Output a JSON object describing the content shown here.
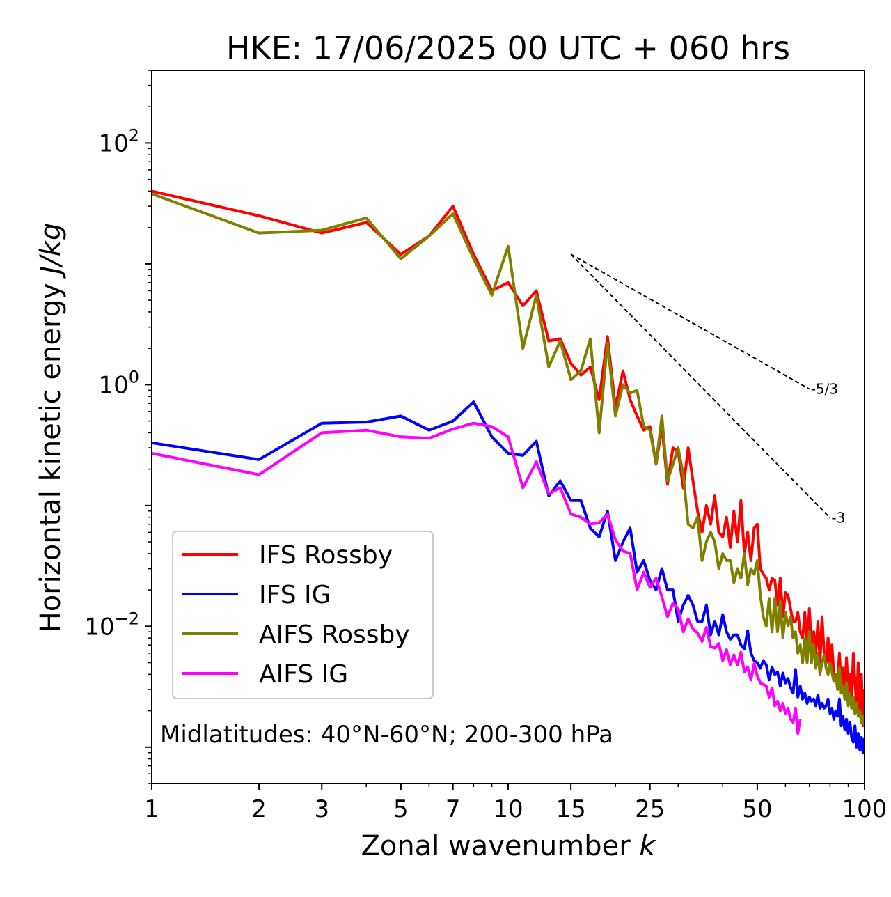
{
  "chart_data": {
    "type": "line",
    "title": "HKE: 17/06/2025 00 UTC + 060 hrs",
    "xlabel": "Zonal wavenumber",
    "xlabel_var": "k",
    "ylabel": "Horizontal kinetic energy",
    "ylabel_unit": "J/kg",
    "xscale": "log",
    "yscale": "log",
    "xlim": [
      1,
      100
    ],
    "ylim": [
      0.0005,
      400
    ],
    "x_ticks": [
      {
        "value": 1,
        "label": "1"
      },
      {
        "value": 2,
        "label": "2"
      },
      {
        "value": 3,
        "label": "3"
      },
      {
        "value": 5,
        "label": "5"
      },
      {
        "value": 7,
        "label": "7"
      },
      {
        "value": 10,
        "label": "10"
      },
      {
        "value": 15,
        "label": "15"
      },
      {
        "value": 25,
        "label": "25"
      },
      {
        "value": 50,
        "label": "50"
      },
      {
        "value": 100,
        "label": "100"
      }
    ],
    "y_ticks": [
      {
        "value": 0.01,
        "base": "10",
        "exp": "−2"
      },
      {
        "value": 1,
        "base": "10",
        "exp": "0"
      },
      {
        "value": 100,
        "base": "10",
        "exp": "2"
      }
    ],
    "legend_position": "lower-left",
    "annotation": "Midlatitudes: 40°N-60°N; 200-300 hPa",
    "reference_lines": [
      {
        "label": "-5/3",
        "slope": -1.6667,
        "x": [
          15,
          70
        ],
        "y_start": 12
      },
      {
        "label": "-3",
        "slope": -3,
        "x": [
          15,
          80
        ],
        "y_start": 12
      }
    ],
    "series": [
      {
        "name": "IFS Rossby",
        "color": "#ff0000",
        "x": [
          1,
          2,
          3,
          4,
          5,
          6,
          7,
          8,
          9,
          10,
          11,
          12,
          13,
          14,
          15,
          16,
          17,
          18,
          19,
          20,
          21,
          22,
          23,
          24,
          25,
          26,
          27,
          28,
          29,
          30,
          31,
          32,
          33,
          34,
          35,
          36,
          37,
          38,
          39,
          40,
          41,
          42,
          43,
          44,
          45,
          46,
          47,
          48,
          49,
          50,
          51,
          52,
          53,
          54,
          55,
          56,
          57,
          58,
          59,
          60,
          61,
          62,
          63,
          64,
          65,
          66,
          67,
          68,
          69,
          70,
          71,
          72,
          73,
          74,
          75,
          76,
          77,
          78,
          79,
          80,
          81,
          82,
          83,
          84,
          85,
          86,
          87,
          88,
          89,
          90,
          91,
          92,
          93,
          94,
          95,
          96,
          97,
          98,
          99,
          100
        ],
        "y": [
          40,
          25,
          18,
          22,
          12,
          17,
          30,
          12,
          6,
          7,
          4.5,
          6,
          2.3,
          2.4,
          1.5,
          1.2,
          1.4,
          0.75,
          2.5,
          0.65,
          1.3,
          0.75,
          0.55,
          0.42,
          0.45,
          0.22,
          0.45,
          0.15,
          0.3,
          0.28,
          0.14,
          0.3,
          0.16,
          0.09,
          0.06,
          0.1,
          0.07,
          0.12,
          0.06,
          0.055,
          0.08,
          0.045,
          0.09,
          0.05,
          0.11,
          0.04,
          0.06,
          0.035,
          0.065,
          0.07,
          0.03,
          0.027,
          0.025,
          0.02,
          0.025,
          0.024,
          0.015,
          0.025,
          0.012,
          0.019,
          0.018,
          0.014,
          0.011,
          0.011,
          0.013,
          0.009,
          0.008,
          0.013,
          0.006,
          0.014,
          0.007,
          0.009,
          0.006,
          0.011,
          0.005,
          0.012,
          0.006,
          0.005,
          0.008,
          0.0045,
          0.007,
          0.004,
          0.0037,
          0.0035,
          0.006,
          0.0032,
          0.0045,
          0.003,
          0.0055,
          0.0028,
          0.004,
          0.0025,
          0.006,
          0.0035,
          0.0022,
          0.005,
          0.0018,
          0.004,
          0.0015,
          0.003
        ]
      },
      {
        "name": "IFS IG",
        "color": "#0000ff",
        "x": [
          1,
          2,
          3,
          4,
          5,
          6,
          7,
          8,
          9,
          10,
          11,
          12,
          13,
          14,
          15,
          16,
          17,
          18,
          19,
          20,
          21,
          22,
          23,
          24,
          25,
          26,
          27,
          28,
          29,
          30,
          31,
          32,
          33,
          34,
          35,
          36,
          37,
          38,
          39,
          40,
          41,
          42,
          43,
          44,
          45,
          46,
          47,
          48,
          49,
          50,
          51,
          52,
          53,
          54,
          55,
          56,
          57,
          58,
          59,
          60,
          61,
          62,
          63,
          64,
          65,
          66,
          67,
          68,
          69,
          70,
          71,
          72,
          73,
          74,
          75,
          76,
          77,
          78,
          79,
          80,
          81,
          82,
          83,
          84,
          85,
          86,
          87,
          88,
          89,
          90,
          91,
          92,
          93,
          94,
          95,
          96,
          97,
          98,
          99,
          100
        ],
        "y": [
          0.33,
          0.24,
          0.48,
          0.49,
          0.55,
          0.42,
          0.5,
          0.72,
          0.37,
          0.27,
          0.26,
          0.34,
          0.12,
          0.16,
          0.11,
          0.11,
          0.065,
          0.055,
          0.09,
          0.035,
          0.05,
          0.065,
          0.028,
          0.035,
          0.024,
          0.02,
          0.03,
          0.02,
          0.02,
          0.011,
          0.015,
          0.018,
          0.015,
          0.011,
          0.011,
          0.015,
          0.0085,
          0.011,
          0.0085,
          0.0125,
          0.009,
          0.0078,
          0.0085,
          0.0085,
          0.007,
          0.0065,
          0.0092,
          0.006,
          0.0052,
          0.005,
          0.0045,
          0.0052,
          0.0048,
          0.0036,
          0.0046,
          0.004,
          0.0042,
          0.0032,
          0.0041,
          0.0034,
          0.0037,
          0.0031,
          0.0028,
          0.0044,
          0.0026,
          0.0032,
          0.0025,
          0.0028,
          0.0023,
          0.0026,
          0.0024,
          0.0025,
          0.0022,
          0.0027,
          0.0021,
          0.0023,
          0.0021,
          0.0022,
          0.0025,
          0.0019,
          0.0021,
          0.0017,
          0.002,
          0.0018,
          0.0025,
          0.0015,
          0.0018,
          0.0014,
          0.0017,
          0.0013,
          0.0016,
          0.0012,
          0.0011,
          0.0015,
          0.001,
          0.0013,
          0.00095,
          0.0012,
          0.0009,
          0.0012
        ]
      },
      {
        "name": "AIFS Rossby",
        "color": "#808000",
        "x": [
          1,
          2,
          3,
          4,
          5,
          6,
          7,
          8,
          9,
          10,
          11,
          12,
          13,
          14,
          15,
          16,
          17,
          18,
          19,
          20,
          21,
          22,
          23,
          24,
          25,
          26,
          27,
          28,
          29,
          30,
          31,
          32,
          33,
          34,
          35,
          36,
          37,
          38,
          39,
          40,
          41,
          42,
          43,
          44,
          45,
          46,
          47,
          48,
          49,
          50,
          51,
          52,
          53,
          54,
          55,
          56,
          57,
          58,
          59,
          60,
          61,
          62,
          63,
          64,
          65,
          66,
          67,
          68,
          69,
          70,
          71,
          72,
          73,
          74,
          75,
          76,
          77,
          78,
          79,
          80,
          81,
          82,
          83,
          84,
          85,
          86,
          87,
          88,
          89,
          90,
          91,
          92,
          93,
          94,
          95,
          96,
          97,
          98,
          99,
          100
        ],
        "y": [
          38,
          18,
          19,
          24,
          11,
          17,
          26,
          11,
          5.5,
          14,
          2,
          5.5,
          1.4,
          2.3,
          1.1,
          1.3,
          2.4,
          0.4,
          2.2,
          0.55,
          1,
          0.85,
          0.9,
          0.45,
          0.42,
          0.22,
          0.55,
          0.16,
          0.22,
          0.3,
          0.18,
          0.07,
          0.065,
          0.08,
          0.035,
          0.05,
          0.06,
          0.05,
          0.03,
          0.04,
          0.035,
          0.035,
          0.023,
          0.03,
          0.025,
          0.04,
          0.022,
          0.03,
          0.027,
          0.035,
          0.018,
          0.012,
          0.01,
          0.017,
          0.009,
          0.017,
          0.009,
          0.016,
          0.008,
          0.013,
          0.01,
          0.012,
          0.008,
          0.009,
          0.006,
          0.007,
          0.005,
          0.008,
          0.005,
          0.009,
          0.005,
          0.007,
          0.0045,
          0.006,
          0.004,
          0.005,
          0.0058,
          0.0045,
          0.004,
          0.005,
          0.0042,
          0.0035,
          0.004,
          0.003,
          0.0045,
          0.0028,
          0.0032,
          0.0025,
          0.0034,
          0.0022,
          0.0028,
          0.0021,
          0.0026,
          0.0019,
          0.0023,
          0.0018,
          0.002,
          0.0016,
          0.0018,
          0.0015
        ]
      },
      {
        "name": "AIFS IG",
        "color": "#ff00ff",
        "x": [
          1,
          2,
          3,
          4,
          5,
          6,
          7,
          8,
          9,
          10,
          11,
          12,
          13,
          14,
          15,
          16,
          17,
          18,
          19,
          20,
          21,
          22,
          23,
          24,
          25,
          26,
          27,
          28,
          29,
          30,
          31,
          32,
          33,
          34,
          35,
          36,
          37,
          38,
          39,
          40,
          41,
          42,
          43,
          44,
          45,
          46,
          47,
          48,
          49,
          50,
          51,
          52,
          53,
          54,
          55,
          56,
          57,
          58,
          59,
          60,
          61,
          62,
          63,
          64,
          65,
          66
        ],
        "y": [
          0.27,
          0.18,
          0.4,
          0.42,
          0.37,
          0.36,
          0.43,
          0.48,
          0.45,
          0.37,
          0.14,
          0.23,
          0.125,
          0.14,
          0.085,
          0.08,
          0.07,
          0.072,
          0.085,
          0.052,
          0.042,
          0.04,
          0.02,
          0.028,
          0.021,
          0.025,
          0.0175,
          0.012,
          0.0155,
          0.014,
          0.009,
          0.0115,
          0.0095,
          0.0088,
          0.0075,
          0.0098,
          0.0068,
          0.0066,
          0.0072,
          0.0052,
          0.0064,
          0.0048,
          0.0058,
          0.0048,
          0.0061,
          0.0042,
          0.0046,
          0.0036,
          0.0049,
          0.0039,
          0.0034,
          0.0033,
          0.0032,
          0.0026,
          0.0031,
          0.0022,
          0.0024,
          0.002,
          0.0023,
          0.0019,
          0.0021,
          0.0017,
          0.0016,
          0.0021,
          0.0013,
          0.0017
        ]
      }
    ]
  }
}
